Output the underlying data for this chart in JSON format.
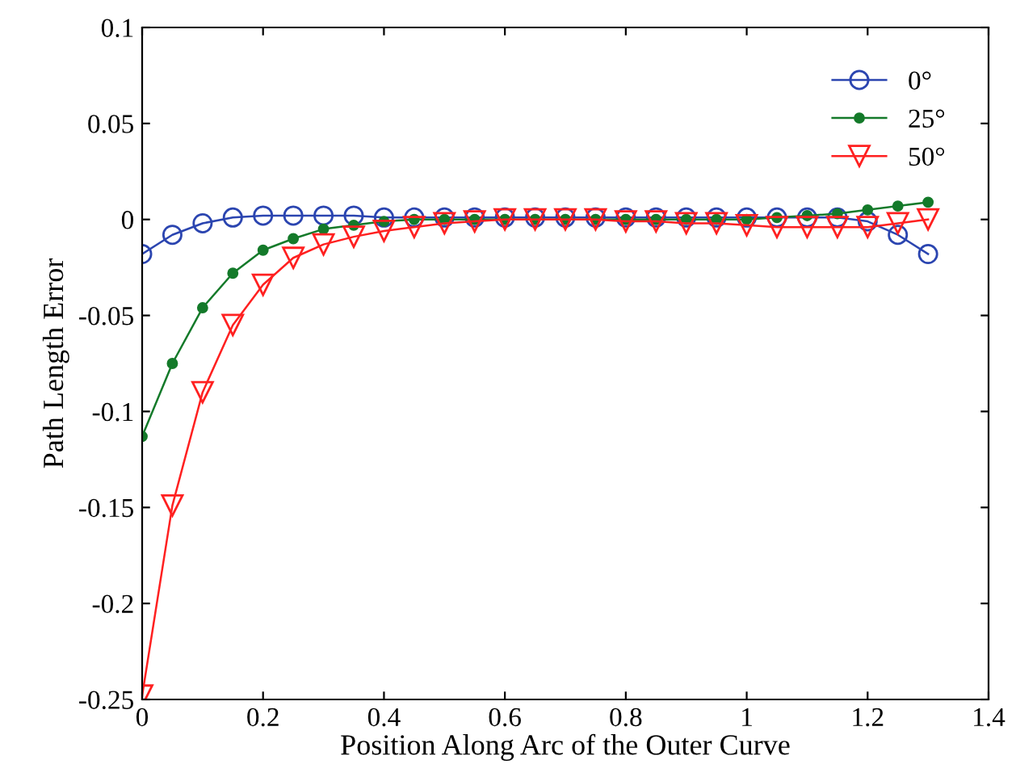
{
  "chart_data": {
    "type": "line",
    "xlabel": "Position Along Arc of the Outer Curve",
    "ylabel": "Path Length Error",
    "x": [
      0,
      0.05,
      0.1,
      0.15,
      0.2,
      0.25,
      0.3,
      0.35,
      0.4,
      0.45,
      0.5,
      0.55,
      0.6,
      0.65,
      0.7,
      0.75,
      0.8,
      0.85,
      0.9,
      0.95,
      1.0,
      1.05,
      1.1,
      1.15,
      1.2,
      1.25,
      1.3
    ],
    "series": [
      {
        "name": "0°",
        "color": "#2b45b0",
        "marker": "circle",
        "values": [
          -0.018,
          -0.008,
          -0.002,
          0.001,
          0.002,
          0.002,
          0.002,
          0.002,
          0.001,
          0.001,
          0.001,
          0.001,
          0.001,
          0.001,
          0.001,
          0.001,
          0.001,
          0.001,
          0.001,
          0.001,
          0.001,
          0.001,
          0.001,
          0.001,
          -0.001,
          -0.008,
          -0.018
        ]
      },
      {
        "name": "25°",
        "color": "#147a2a",
        "marker": "dot",
        "values": [
          -0.113,
          -0.075,
          -0.046,
          -0.028,
          -0.016,
          -0.01,
          -0.005,
          -0.003,
          -0.001,
          0,
          0,
          0,
          0,
          0,
          0,
          0,
          0,
          0,
          0,
          0,
          0,
          0.001,
          0.002,
          0.003,
          0.005,
          0.007,
          0.009
        ]
      },
      {
        "name": "50°",
        "color": "#ff2020",
        "marker": "triangle",
        "values": [
          -0.248,
          -0.149,
          -0.09,
          -0.055,
          -0.034,
          -0.02,
          -0.013,
          -0.009,
          -0.006,
          -0.004,
          -0.002,
          -0.001,
          0,
          0,
          0,
          0,
          -0.001,
          -0.001,
          -0.002,
          -0.002,
          -0.003,
          -0.004,
          -0.004,
          -0.004,
          -0.004,
          -0.002,
          0
        ]
      }
    ],
    "xlim": [
      0,
      1.4
    ],
    "xticks": [
      0,
      0.2,
      0.4,
      0.6,
      0.8,
      1,
      1.2,
      1.4
    ],
    "ylim": [
      -0.25,
      0.1
    ],
    "yticks": [
      {
        "value": -0.25,
        "label": "-0.25"
      },
      {
        "value": -0.2,
        "label": "-0.2"
      },
      {
        "value": -0.15,
        "label": "-0.15"
      },
      {
        "value": -0.1,
        "label": "-0.1"
      },
      {
        "value": -0.05,
        "label": "-0.05"
      },
      0,
      0.05,
      0.1
    ],
    "grid": false,
    "legend": "top right",
    "line_style": "solid"
  }
}
